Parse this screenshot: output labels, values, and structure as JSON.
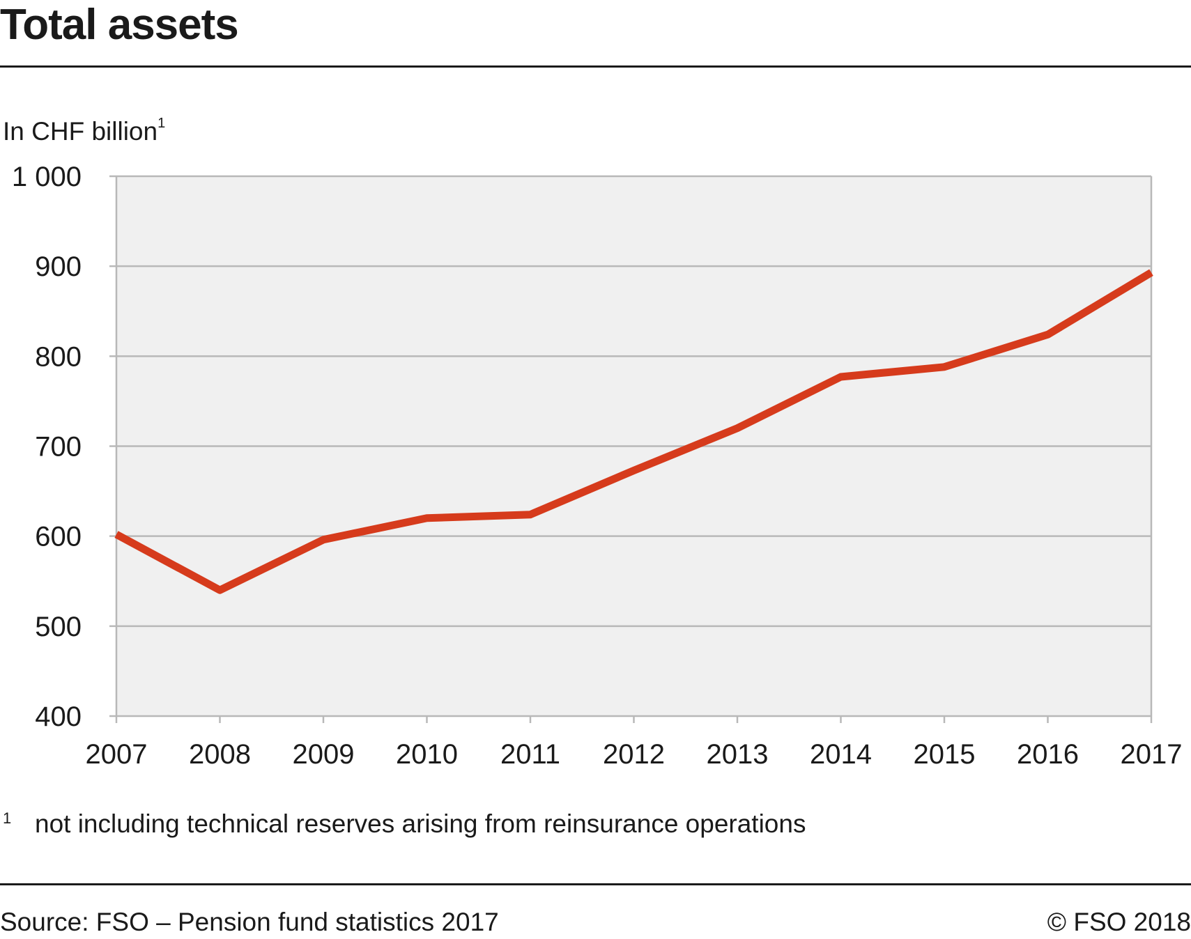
{
  "page": {
    "title": "Total assets",
    "unit": "In CHF billion",
    "unit_sup": "1",
    "footnote_mark": "1",
    "footnote_text": "not including technical reserves arising from reinsurance operations",
    "source": "Source: FSO – Pension fund statistics 2017",
    "copyright": "© FSO 2018"
  },
  "colors": {
    "line": "#d63b1c",
    "plot_bg": "#f0f0f0",
    "grid": "#b8b8b8",
    "text": "#1a1a1a"
  },
  "chart_data": {
    "type": "line",
    "title": "Total assets",
    "ylabel": "In CHF billion",
    "x": [
      "2007",
      "2008",
      "2009",
      "2010",
      "2011",
      "2012",
      "2013",
      "2014",
      "2015",
      "2016",
      "2017"
    ],
    "series": [
      {
        "values": [
          602,
          540,
          596,
          620,
          624,
          673,
          720,
          777,
          788,
          824,
          893
        ]
      }
    ],
    "ylim": [
      400,
      1000
    ],
    "yticks": [
      400,
      500,
      600,
      700,
      800,
      900,
      1000
    ],
    "ytick_labels": [
      "400",
      "500",
      "600",
      "700",
      "800",
      "900",
      "1 000"
    ],
    "grid": true,
    "legend": false
  }
}
